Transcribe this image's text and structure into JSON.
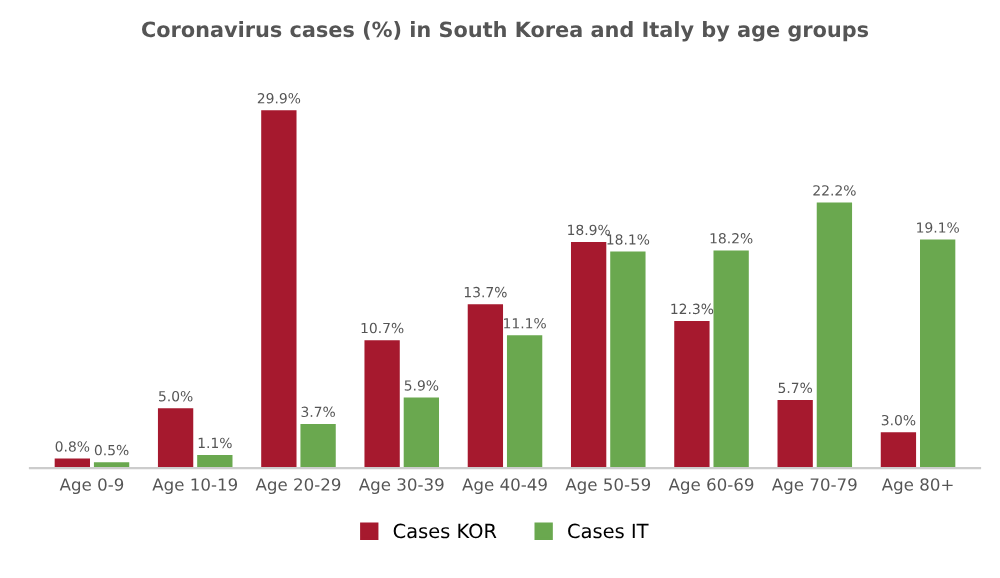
{
  "chart_data": {
    "type": "bar",
    "title": "Coronavirus cases (%) in South Korea and Italy by age groups",
    "categories": [
      "Age 0-9",
      "Age 10-19",
      "Age 20-29",
      "Age 30-39",
      "Age 40-49",
      "Age 50-59",
      "Age 60-69",
      "Age 70-79",
      "Age 80+"
    ],
    "series": [
      {
        "name": "Cases KOR",
        "color": "#a6192e",
        "values": [
          0.8,
          5.0,
          29.9,
          10.7,
          13.7,
          18.9,
          12.3,
          5.7,
          3.0
        ],
        "value_labels": [
          "0.8%",
          "5.0%",
          "29.9%",
          "10.7%",
          "13.7%",
          "18.9%",
          "12.3%",
          "5.7%",
          "3.0%"
        ]
      },
      {
        "name": "Cases IT",
        "color": "#6aa84f",
        "values": [
          0.5,
          1.1,
          3.7,
          5.9,
          11.1,
          18.1,
          18.2,
          22.2,
          19.1
        ],
        "value_labels": [
          "0.5%",
          "1.1%",
          "3.7%",
          "5.9%",
          "11.1%",
          "18.1%",
          "18.2%",
          "22.2%",
          "19.1%"
        ]
      }
    ],
    "legend": "bottom",
    "grid": false
  }
}
